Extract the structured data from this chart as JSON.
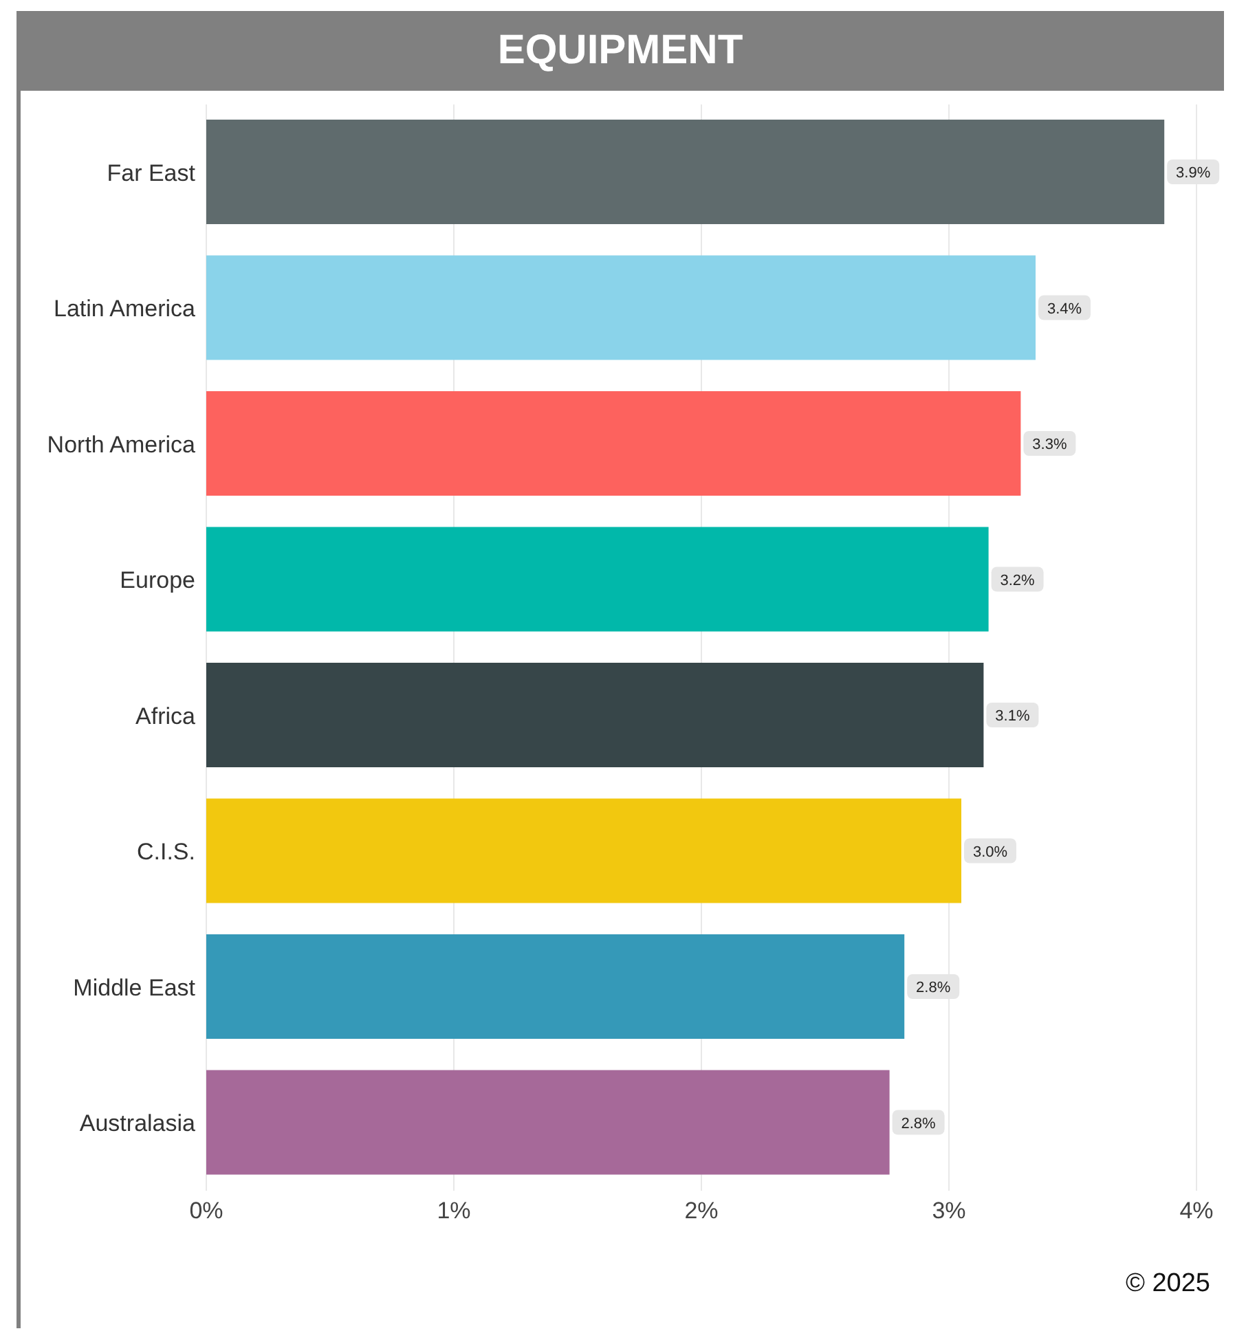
{
  "chart_data": {
    "type": "bar",
    "orientation": "horizontal",
    "title": "EQUIPMENT",
    "categories": [
      "Far East",
      "Latin America",
      "North America",
      "Europe",
      "Africa",
      "C.I.S.",
      "Middle East",
      "Australasia"
    ],
    "values": [
      3.87,
      3.35,
      3.29,
      3.16,
      3.14,
      3.05,
      2.82,
      2.76
    ],
    "value_labels": [
      "3.9%",
      "3.4%",
      "3.3%",
      "3.2%",
      "3.1%",
      "3.0%",
      "2.8%",
      "2.8%"
    ],
    "colors": [
      "#5f6b6d",
      "#8ad3ea",
      "#fd625e",
      "#01b8aa",
      "#374649",
      "#f2c80f",
      "#3599b8",
      "#a66999"
    ],
    "xlim": [
      0,
      4
    ],
    "xticks": [
      {
        "value": 0,
        "label": "0%"
      },
      {
        "value": 1,
        "label": "1%"
      },
      {
        "value": 2,
        "label": "2%"
      },
      {
        "value": 3,
        "label": "3%"
      },
      {
        "value": 4,
        "label": "4%"
      }
    ],
    "grid": "x",
    "annotations": [
      "© 2025"
    ]
  }
}
